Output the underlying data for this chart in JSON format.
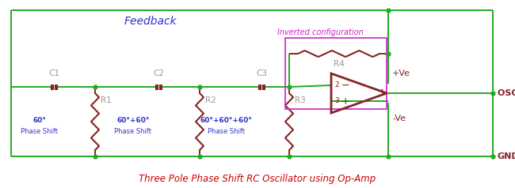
{
  "title": "Three Pole Phase Shift RC Oscillator using Op-Amp",
  "title_color": "#cc0000",
  "feedback_label": "Feedback",
  "feedback_color": "#3333cc",
  "inverted_label": "Inverted configuration",
  "inverted_color": "#cc22cc",
  "osc_out_label": "OSC Out",
  "gnd_label": "GND",
  "plus_ve_label": "+Ve",
  "minus_ve_label": "-Ve",
  "wire_color": "#22aa22",
  "component_color": "#882222",
  "label_color_gray": "#999999",
  "phase_color": "#3333cc",
  "bg_color": "#ffffff",
  "capacitor_labels": [
    "C1",
    "C2",
    "C3"
  ],
  "resistor_labels": [
    "R1",
    "R2",
    "R3",
    "R4"
  ],
  "phase_labels_top": [
    "60°",
    "60°+60°",
    "60°+60°+60°"
  ],
  "phase_labels_bottom": [
    "Phase Shift",
    "Phase Shift",
    "Phase Shift"
  ]
}
